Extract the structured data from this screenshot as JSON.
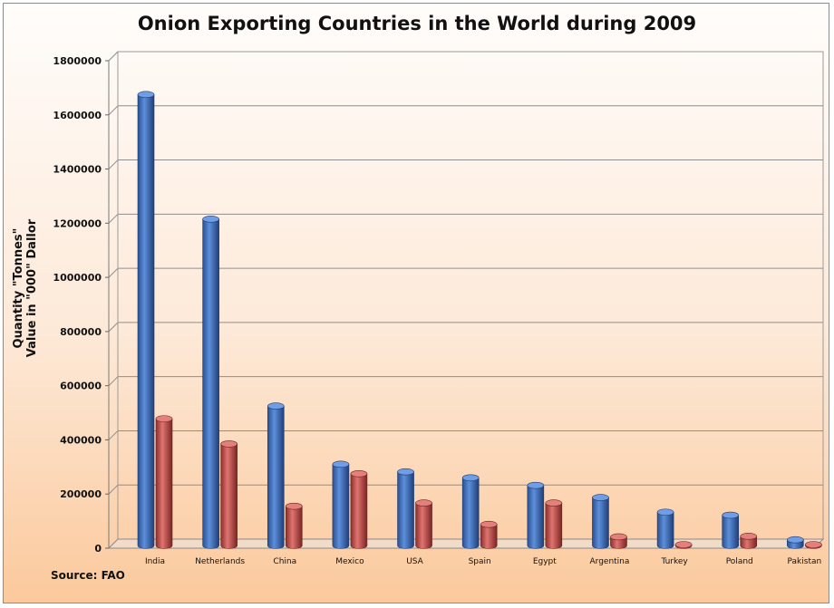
{
  "chart_data": {
    "type": "bar",
    "title": "Onion Exporting Countries in the World during 2009",
    "ylabel": [
      "Quantity \"Tonnes\"",
      "Value in \"000\" Dallor"
    ],
    "source": "Source: FAO",
    "categories": [
      "India",
      "Netherlands",
      "China",
      "Mexico",
      "USA",
      "Spain",
      "Egypt",
      "Argentina",
      "Turkey",
      "Poland",
      "Pakistan"
    ],
    "series": [
      {
        "color": "#3c6fc0",
        "values": [
          1675000,
          1215000,
          525000,
          310000,
          282000,
          260000,
          232000,
          187000,
          133000,
          122000,
          31000
        ]
      },
      {
        "color": "#c0504d",
        "values": [
          478000,
          385000,
          155000,
          275000,
          167000,
          88000,
          167000,
          42000,
          10000,
          44000,
          4000
        ]
      }
    ],
    "ylim": [
      0,
      1800000
    ],
    "yticks": [
      "0",
      "200000",
      "400000",
      "600000",
      "800000",
      "1000000",
      "1200000",
      "1400000",
      "1600000",
      "1800000"
    ],
    "grid": true,
    "legend": "none"
  }
}
